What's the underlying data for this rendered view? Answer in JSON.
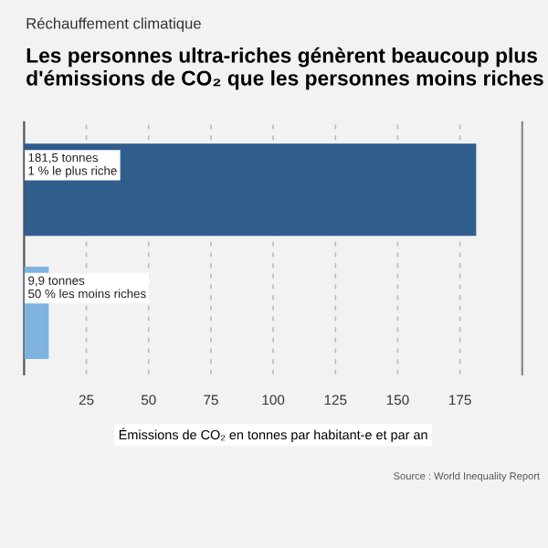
{
  "chart_data": {
    "type": "bar",
    "orientation": "horizontal",
    "subtitle": "Réchauffement climatique",
    "title": "Les personnes ultra-riches génèrent beaucoup plus d'émissions de CO₂ que les personnes moins riches",
    "xlabel": "Émissions de CO₂ en tonnes par habitant-e et par an",
    "categories": [
      null,
      null
    ],
    "values": [
      181.5,
      9.9
    ],
    "colors": [
      "#2f5d8c",
      "#7fb3e0"
    ],
    "value_labels": [
      "181,5 tonnes\n1 % le plus riche",
      "9,9 tonnes\n50 % les moins riches"
    ],
    "xlim": [
      0,
      200
    ],
    "xticks": [
      25,
      50,
      75,
      100,
      125,
      150,
      175
    ],
    "grid": "x",
    "annotations": [
      "Source : World Inequality Report"
    ]
  }
}
